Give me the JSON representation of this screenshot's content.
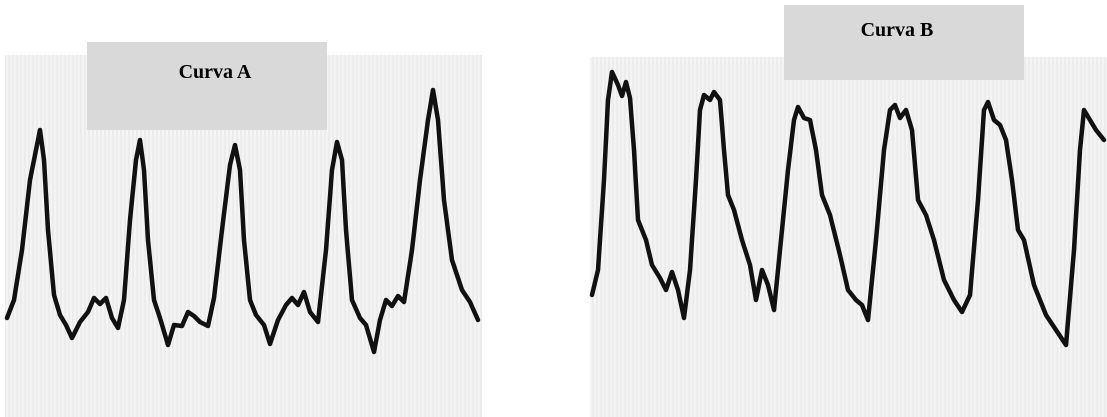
{
  "panels": [
    {
      "label": "Curva A"
    },
    {
      "label": "Curva B"
    }
  ]
}
